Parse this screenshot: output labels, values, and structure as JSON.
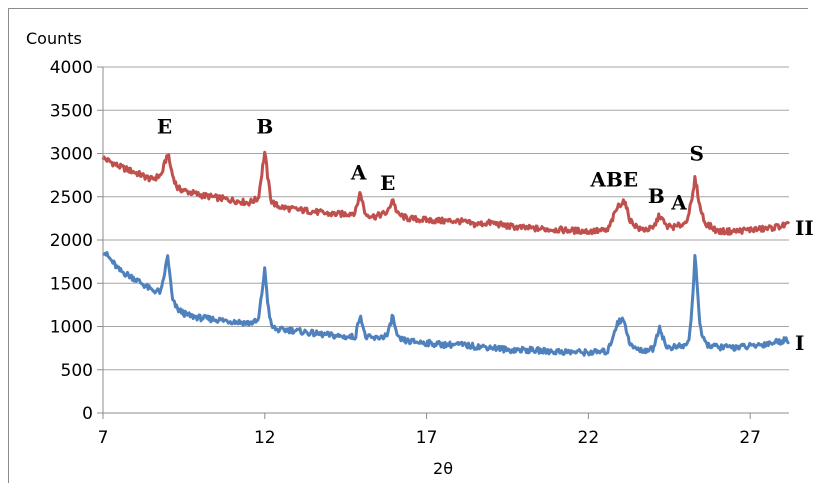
{
  "chart_data": {
    "type": "line",
    "title": "",
    "xlabel": "2θ",
    "ylabel": "Counts",
    "xlim": [
      7,
      28.2
    ],
    "ylim": [
      0,
      4000
    ],
    "x_ticks": [
      7,
      12,
      17,
      22,
      27
    ],
    "y_ticks": [
      0,
      500,
      1000,
      1500,
      2000,
      2500,
      3000,
      3500,
      4000
    ],
    "grid": "horizontal",
    "colors": {
      "series_II": "#c0504d",
      "series_I": "#4f81bd",
      "grid": "#a6a6a6"
    },
    "series": [
      {
        "name": "II",
        "color": "#c0504d",
        "x": [
          7.0,
          7.5,
          8.0,
          8.5,
          8.8,
          9.0,
          9.15,
          9.3,
          9.6,
          10,
          10.5,
          11,
          11.5,
          11.8,
          12.0,
          12.1,
          12.2,
          12.4,
          12.8,
          13.5,
          14,
          14.5,
          14.8,
          14.95,
          15.1,
          15.4,
          15.8,
          15.95,
          16.1,
          16.4,
          17,
          17.5,
          18,
          18.5,
          19,
          19.5,
          20,
          21,
          22,
          22.6,
          22.9,
          23.1,
          23.3,
          23.6,
          24.0,
          24.2,
          24.4,
          24.7,
          25.0,
          25.1,
          25.2,
          25.3,
          25.45,
          25.6,
          26,
          26.5,
          27,
          27.5,
          28.2
        ],
        "y": [
          2950,
          2850,
          2780,
          2700,
          2750,
          3000,
          2750,
          2600,
          2560,
          2520,
          2490,
          2460,
          2430,
          2480,
          3020,
          2700,
          2450,
          2390,
          2360,
          2330,
          2300,
          2300,
          2320,
          2560,
          2300,
          2270,
          2320,
          2480,
          2300,
          2250,
          2230,
          2220,
          2220,
          2180,
          2200,
          2160,
          2140,
          2120,
          2100,
          2110,
          2380,
          2460,
          2220,
          2120,
          2130,
          2290,
          2160,
          2150,
          2200,
          2310,
          2450,
          2720,
          2380,
          2200,
          2100,
          2100,
          2120,
          2130,
          2180
        ]
      },
      {
        "name": "I",
        "color": "#4f81bd",
        "x": [
          7.0,
          7.5,
          8.0,
          8.5,
          8.8,
          9.0,
          9.15,
          9.3,
          9.6,
          10,
          10.5,
          11,
          11.5,
          11.8,
          12.0,
          12.1,
          12.2,
          12.4,
          12.8,
          13.5,
          14,
          14.5,
          14.8,
          14.95,
          15.1,
          15.4,
          15.8,
          15.95,
          16.1,
          16.4,
          17,
          17.5,
          18,
          18.5,
          19,
          19.5,
          20,
          21,
          22,
          22.6,
          22.9,
          23.1,
          23.3,
          23.6,
          24.0,
          24.2,
          24.4,
          24.7,
          25.0,
          25.1,
          25.2,
          25.3,
          25.45,
          25.6,
          26,
          26.5,
          27,
          27.5,
          28.2
        ],
        "y": [
          1880,
          1650,
          1550,
          1420,
          1400,
          1820,
          1300,
          1200,
          1130,
          1100,
          1080,
          1060,
          1040,
          1060,
          1660,
          1250,
          1000,
          960,
          960,
          920,
          900,
          880,
          880,
          1150,
          880,
          860,
          900,
          1130,
          860,
          830,
          810,
          790,
          790,
          770,
          760,
          730,
          730,
          710,
          700,
          710,
          1050,
          1080,
          780,
          720,
          740,
          1000,
          760,
          760,
          780,
          820,
          1200,
          1850,
          980,
          800,
          760,
          760,
          770,
          800,
          850
        ]
      }
    ],
    "series_labels": [
      {
        "text": "II",
        "y": 2150
      },
      {
        "text": "I",
        "y": 820
      }
    ],
    "annotations": [
      {
        "text": "E",
        "x": 8.9,
        "y": 3230
      },
      {
        "text": "B",
        "x": 12.0,
        "y": 3230
      },
      {
        "text": "A",
        "x": 14.9,
        "y": 2700
      },
      {
        "text": "E",
        "x": 15.8,
        "y": 2580
      },
      {
        "text": "ABE",
        "x": 22.8,
        "y": 2620
      },
      {
        "text": "B",
        "x": 24.1,
        "y": 2430
      },
      {
        "text": "A",
        "x": 24.8,
        "y": 2350
      },
      {
        "text": "S",
        "x": 25.35,
        "y": 2920
      }
    ]
  }
}
